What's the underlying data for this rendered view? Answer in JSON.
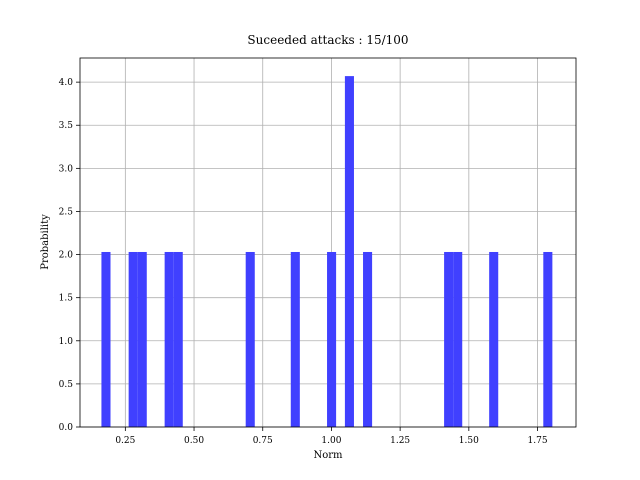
{
  "chart_data": {
    "type": "bar",
    "title": "Suceeded attacks : 15/100",
    "xlabel": "Norm",
    "ylabel": "Probability",
    "xlim": [
      0.085,
      1.89
    ],
    "ylim": [
      0,
      4.28
    ],
    "xticks": [
      0.25,
      0.5,
      0.75,
      1.0,
      1.25,
      1.5,
      1.75
    ],
    "xtick_labels": [
      "0.25",
      "0.50",
      "0.75",
      "1.00",
      "1.25",
      "1.50",
      "1.75"
    ],
    "yticks": [
      0.0,
      0.5,
      1.0,
      1.5,
      2.0,
      2.5,
      3.0,
      3.5,
      4.0
    ],
    "ytick_labels": [
      "0.0",
      "0.5",
      "1.0",
      "1.5",
      "2.0",
      "2.5",
      "3.0",
      "3.5",
      "4.0"
    ],
    "grid": true,
    "bar_color": "#4040ff",
    "bins": [
      {
        "x0": 0.163,
        "x1": 0.196,
        "value": 2.03
      },
      {
        "x0": 0.262,
        "x1": 0.295,
        "value": 2.03
      },
      {
        "x0": 0.295,
        "x1": 0.328,
        "value": 2.03
      },
      {
        "x0": 0.393,
        "x1": 0.426,
        "value": 2.03
      },
      {
        "x0": 0.426,
        "x1": 0.459,
        "value": 2.03
      },
      {
        "x0": 0.688,
        "x1": 0.721,
        "value": 2.03
      },
      {
        "x0": 0.852,
        "x1": 0.885,
        "value": 2.03
      },
      {
        "x0": 0.984,
        "x1": 1.017,
        "value": 2.03
      },
      {
        "x0": 1.049,
        "x1": 1.082,
        "value": 4.07
      },
      {
        "x0": 1.115,
        "x1": 1.148,
        "value": 2.03
      },
      {
        "x0": 1.41,
        "x1": 1.443,
        "value": 2.03
      },
      {
        "x0": 1.443,
        "x1": 1.476,
        "value": 2.03
      },
      {
        "x0": 1.574,
        "x1": 1.607,
        "value": 2.03
      },
      {
        "x0": 1.771,
        "x1": 1.804,
        "value": 2.03
      }
    ]
  }
}
